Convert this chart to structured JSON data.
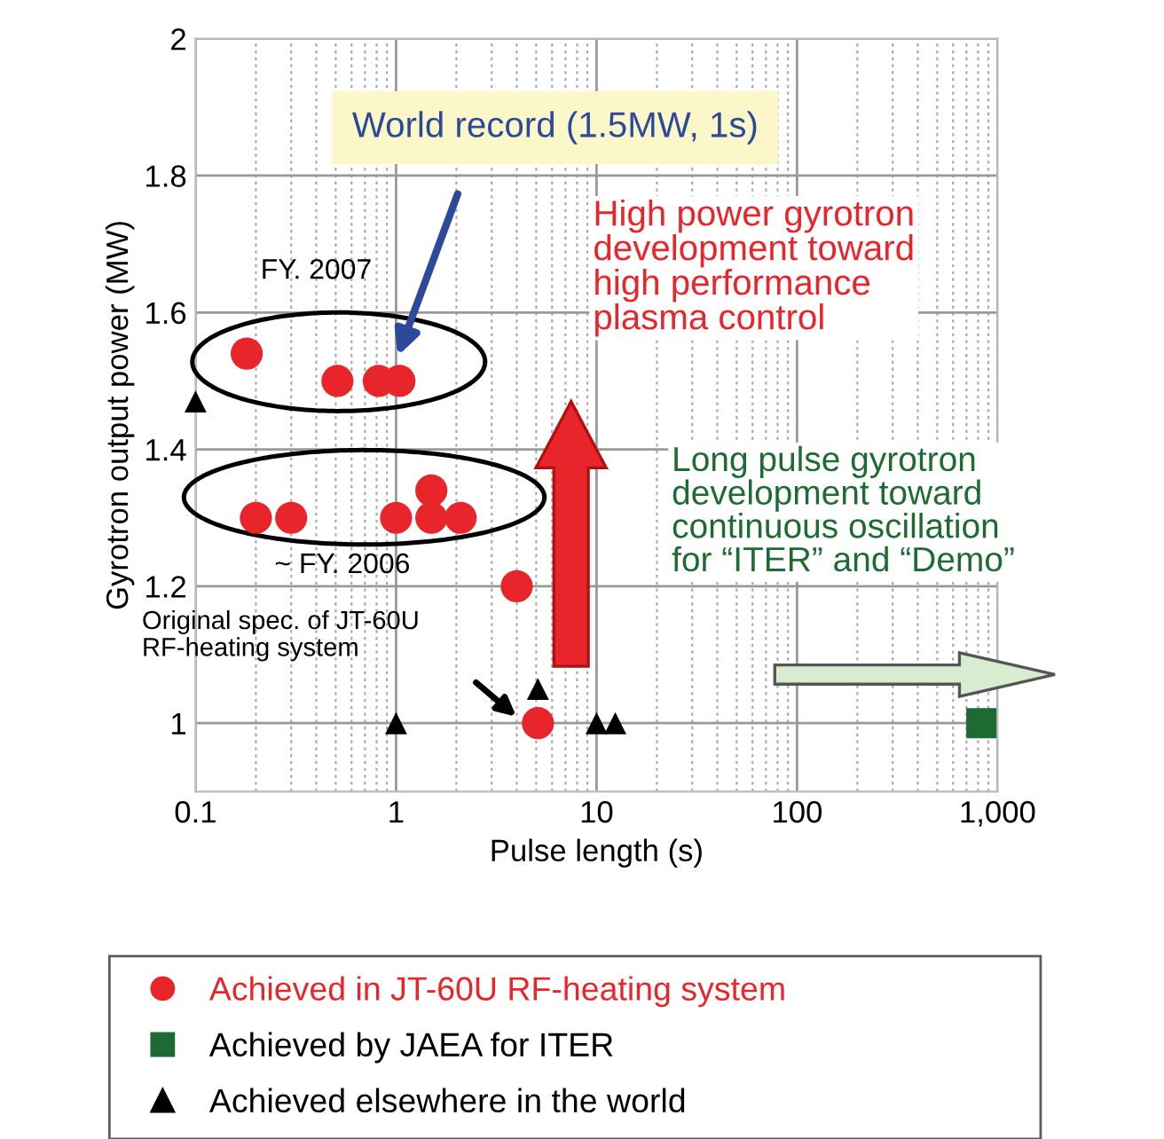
{
  "chart_data": {
    "type": "scatter",
    "xlabel": "Pulse length (s)",
    "ylabel": "Gyrotron output power (MW)",
    "log": "x",
    "xlim": [
      0.1,
      1000
    ],
    "xticks": [
      0.1,
      1,
      10,
      100,
      {
        "value": 1000,
        "label": "1,000"
      }
    ],
    "ylim": [
      0.9,
      2
    ],
    "yticks": [
      1,
      1.2,
      1.4,
      1.6,
      1.8,
      2
    ],
    "grid": true,
    "legend": "bottom",
    "series": [
      {
        "name": "Achieved in JT-60U RF-heating system",
        "color": "#e8252a",
        "marker": "circle",
        "x": [
          0.18,
          0.51,
          0.82,
          1.04,
          0.2,
          0.3,
          1.0,
          1.5,
          1.5,
          2.1,
          4.0,
          5.1
        ],
        "values": [
          1.54,
          1.5,
          1.5,
          1.5,
          1.3,
          1.3,
          1.3,
          1.34,
          1.3,
          1.3,
          1.2,
          1.0
        ]
      },
      {
        "name": "Achieved by JAEA for ITER",
        "color": "#1d6b32",
        "marker": "square",
        "x": [
          830
        ],
        "values": [
          1.0
        ]
      },
      {
        "name": "Achieved elsewhere in the world",
        "color": "#000000",
        "marker": "triangle",
        "x": [
          0.1,
          1.0,
          5.1,
          10,
          12.4
        ],
        "values": [
          1.47,
          1.0,
          1.05,
          1.0,
          1.0
        ]
      }
    ],
    "annotations": [
      "World record (1.5MW, 1s)",
      "FY. 2007",
      "~ FY. 2006",
      "Original spec. of JT-60U\nRF-heating system",
      "High power gyrotron\ndevelopment toward\nhigh performance\nplasma control",
      "Long pulse gyrotron\ndevelopment toward\ncontinuous oscillation\nfor “ITER” and “Demo”"
    ]
  }
}
